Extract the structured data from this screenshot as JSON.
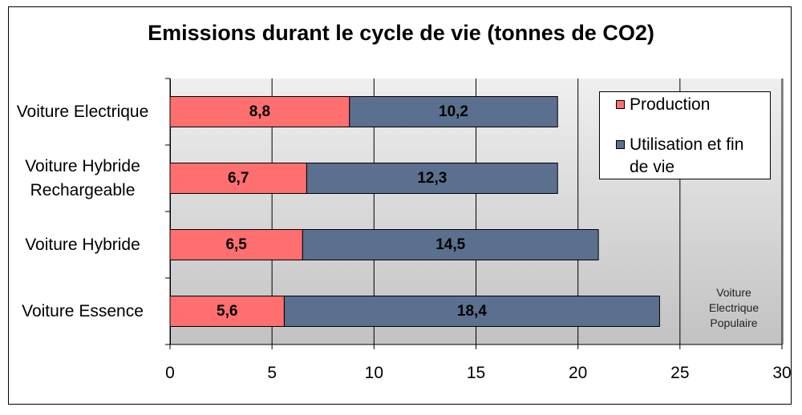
{
  "chart_data": {
    "type": "bar",
    "orientation": "horizontal",
    "stacked": true,
    "title": "Emissions durant le cycle de vie (tonnes de CO2)",
    "categories": [
      "Voiture Electrique",
      "Voiture Hybride Rechargeable",
      "Voiture Hybride",
      "Voiture Essence"
    ],
    "category_lines": [
      [
        "Voiture Electrique"
      ],
      [
        "Voiture Hybride",
        "Rechargeable"
      ],
      [
        "Voiture Hybride"
      ],
      [
        "Voiture Essence"
      ]
    ],
    "series": [
      {
        "name": "Production",
        "values": [
          8.8,
          6.7,
          6.5,
          5.6
        ],
        "labels": [
          "8,8",
          "6,7",
          "6,5",
          "5,6"
        ],
        "color": "#ff6f6f"
      },
      {
        "name": "Utilisation et fin de vie",
        "values": [
          10.2,
          12.3,
          14.5,
          18.4
        ],
        "labels": [
          "10,2",
          "12,3",
          "14,5",
          "18,4"
        ],
        "color": "#5b6f8e"
      }
    ],
    "xlim": [
      0,
      30
    ],
    "xticks": [
      "0",
      "5",
      "10",
      "15",
      "20",
      "25",
      "30"
    ],
    "grid": "vertical",
    "legend_position": "top-right",
    "annotation": "Voiture\nElectrique\nPopulaire"
  }
}
